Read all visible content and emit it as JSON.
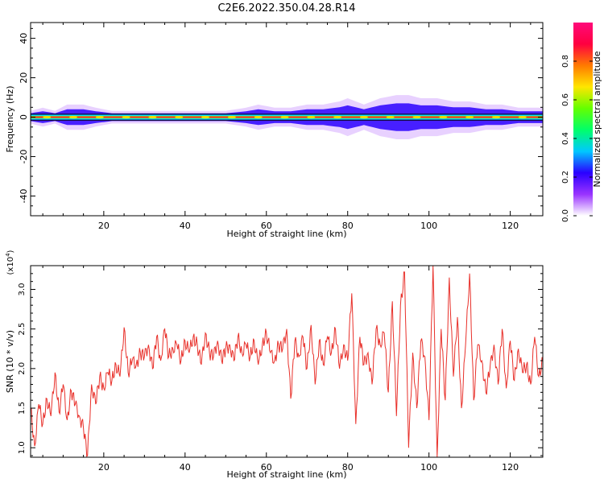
{
  "title": "C2E6.2022.350.04.28.R14",
  "chart_data": [
    {
      "type": "heatmap",
      "xlabel": "Height of straight line (km)",
      "ylabel": "Frequency (Hz)",
      "xlim": [
        2,
        128
      ],
      "ylim": [
        -50,
        48
      ],
      "xticks": [
        20,
        40,
        60,
        80,
        100,
        120
      ],
      "yticks": [
        -40,
        -20,
        0,
        20,
        40
      ],
      "ytick_labels": [
        "-40",
        "-20",
        "0",
        "20",
        "40"
      ],
      "band_center_hz": 0,
      "band_edges_hz": [
        -1.5,
        1.5
      ],
      "spread_profile": [
        [
          2,
          2
        ],
        [
          5,
          3
        ],
        [
          8,
          2
        ],
        [
          11,
          4
        ],
        [
          15,
          4
        ],
        [
          18,
          3
        ],
        [
          22,
          2
        ],
        [
          26,
          2
        ],
        [
          30,
          2
        ],
        [
          35,
          2
        ],
        [
          40,
          2
        ],
        [
          45,
          2
        ],
        [
          50,
          2
        ],
        [
          55,
          3
        ],
        [
          58,
          4
        ],
        [
          62,
          3
        ],
        [
          66,
          3
        ],
        [
          70,
          4
        ],
        [
          74,
          4
        ],
        [
          78,
          5
        ],
        [
          80,
          6
        ],
        [
          84,
          4
        ],
        [
          88,
          6
        ],
        [
          92,
          7
        ],
        [
          95,
          7
        ],
        [
          98,
          6
        ],
        [
          102,
          6
        ],
        [
          106,
          5
        ],
        [
          110,
          5
        ],
        [
          114,
          4
        ],
        [
          118,
          4
        ],
        [
          122,
          3
        ],
        [
          126,
          3
        ],
        [
          128,
          3
        ]
      ],
      "colorbar": {
        "label": "Normalized spectral amplitude",
        "range": [
          0,
          1
        ],
        "ticks": [
          0.0,
          0.2,
          0.4,
          0.6,
          0.8
        ],
        "tick_labels": [
          "0.0",
          "0.2",
          "0.4",
          "0.6",
          "0.8"
        ],
        "colors": [
          "#ffffff",
          "#9a33ff",
          "#2a00ff",
          "#00c8ff",
          "#00ff6a",
          "#64ff00",
          "#ffe600",
          "#ff7a00",
          "#ff0040",
          "#ff0a7a"
        ]
      },
      "colors": {
        "band_line": "#000000",
        "peak": "#ff1a3c",
        "spread": "#2a00ff",
        "halo": "#d9b3ff"
      }
    },
    {
      "type": "line",
      "xlabel": "Height of straight line (km)",
      "ylabel": "SNR (10 * v/v)",
      "y_multiplier": "(x10⁴)",
      "y_multiplier_base": "(x10",
      "y_multiplier_exp": "4",
      "y_multiplier_close": ")",
      "xlim": [
        2,
        128
      ],
      "ylim": [
        0.88,
        3.3
      ],
      "xticks": [
        20,
        40,
        60,
        80,
        100,
        120
      ],
      "yticks": [
        1.0,
        1.5,
        2.0,
        2.5,
        3.0
      ],
      "ytick_labels": [
        "1.0",
        "1.5",
        "2.0",
        "2.5",
        "3.0"
      ],
      "line_color": "#e8302a",
      "series": [
        {
          "x": [
            2,
            3,
            4,
            5,
            6,
            7,
            8,
            9,
            10,
            11,
            12,
            13,
            14,
            15,
            16,
            17,
            18,
            19,
            20,
            21,
            22,
            23,
            24,
            25,
            26,
            27,
            28,
            29,
            30,
            31,
            32,
            33,
            34,
            35,
            36,
            37,
            38,
            39,
            40,
            41,
            42,
            43,
            44,
            45,
            46,
            47,
            48,
            49,
            50,
            51,
            52,
            53,
            54,
            55,
            56,
            57,
            58,
            59,
            60,
            61,
            62,
            63,
            64,
            65,
            66,
            67,
            68,
            69,
            70,
            71,
            72,
            73,
            74,
            75,
            76,
            77,
            78,
            79,
            80,
            81,
            82,
            83,
            84,
            85,
            86,
            87,
            88,
            89,
            90,
            91,
            92,
            93,
            94,
            95,
            96,
            97,
            98,
            99,
            100,
            101,
            102,
            103,
            104,
            105,
            106,
            107,
            108,
            109,
            110,
            111,
            112,
            113,
            114,
            115,
            116,
            117,
            118,
            119,
            120,
            121,
            122,
            123,
            124,
            125,
            126,
            127,
            128
          ],
          "y": [
            1.5,
            1.02,
            1.55,
            1.3,
            1.62,
            1.4,
            1.95,
            1.45,
            1.8,
            1.35,
            1.72,
            1.55,
            1.4,
            1.25,
            0.9,
            1.8,
            1.55,
            1.9,
            1.75,
            1.95,
            1.85,
            2.05,
            1.9,
            2.52,
            1.95,
            2.1,
            2.05,
            2.2,
            2.15,
            2.3,
            2.0,
            2.4,
            2.1,
            2.5,
            2.15,
            2.25,
            2.3,
            2.1,
            2.35,
            2.2,
            2.4,
            2.3,
            2.05,
            2.45,
            2.2,
            2.15,
            2.35,
            2.1,
            2.25,
            2.3,
            2.1,
            2.4,
            2.2,
            2.3,
            2.15,
            2.35,
            2.05,
            2.3,
            2.45,
            2.2,
            2.1,
            2.3,
            2.25,
            2.5,
            1.62,
            2.35,
            2.15,
            2.4,
            2.0,
            2.55,
            1.8,
            2.35,
            2.05,
            2.4,
            2.2,
            2.5,
            2.0,
            2.3,
            2.1,
            2.95,
            1.3,
            2.4,
            2.05,
            2.2,
            1.8,
            2.5,
            2.3,
            2.45,
            1.7,
            2.85,
            1.4,
            2.8,
            3.22,
            1.0,
            2.2,
            1.5,
            2.35,
            2.15,
            1.35,
            3.3,
            0.88,
            2.5,
            1.6,
            3.15,
            1.9,
            2.65,
            1.5,
            2.3,
            3.2,
            1.6,
            2.3,
            2.1,
            1.7,
            2.0,
            2.3,
            1.8,
            2.5,
            1.75,
            2.35,
            1.85,
            2.25,
            1.95,
            2.05,
            1.8,
            2.4,
            1.9,
            2.1
          ]
        }
      ]
    }
  ]
}
